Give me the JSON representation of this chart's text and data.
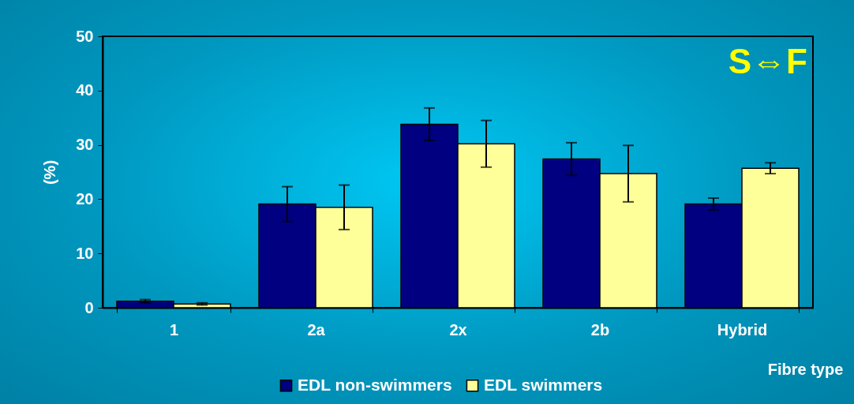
{
  "chart_data": {
    "type": "bar",
    "xlabel": "Fibre type",
    "ylabel": "(%)",
    "categories": [
      "1",
      "2a",
      "2x",
      "2b",
      "Hybrid"
    ],
    "series": [
      {
        "name": "EDL non-swimmers",
        "color": "#000080",
        "values": [
          1.2,
          19.1,
          33.8,
          27.4,
          19.1
        ],
        "errors": [
          0.3,
          3.2,
          3.0,
          3.0,
          1.1
        ]
      },
      {
        "name": "EDL swimmers",
        "color": "#ffff99",
        "values": [
          0.7,
          18.5,
          30.2,
          24.7,
          25.7
        ],
        "errors": [
          0.2,
          4.1,
          4.3,
          5.2,
          1.0
        ]
      }
    ],
    "ylim": [
      0,
      50
    ],
    "yticks": [
      0,
      10,
      20,
      30,
      40,
      50
    ],
    "grid": false,
    "legend": "bottom",
    "annotations": [
      "S⇔F"
    ]
  }
}
